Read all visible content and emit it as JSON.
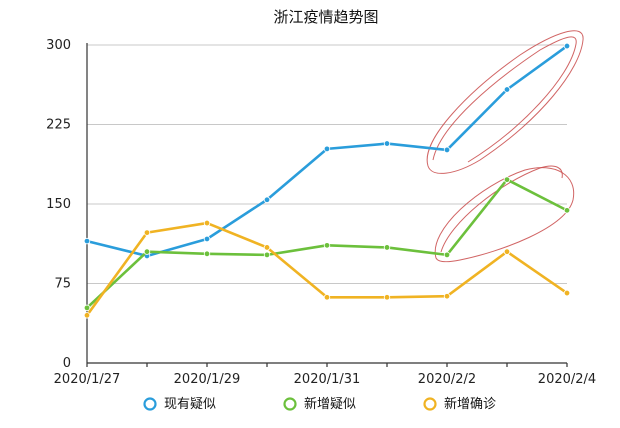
{
  "chart_data": {
    "type": "line",
    "title": "浙江疫情趋势图",
    "x": [
      "2020/1/27",
      "2020/1/28",
      "2020/1/29",
      "2020/1/30",
      "2020/1/31",
      "2020/2/1",
      "2020/2/2",
      "2020/2/3",
      "2020/2/4"
    ],
    "x_tick_labels": [
      "2020/1/27",
      "2020/1/29",
      "2020/1/31",
      "2020/2/2",
      "2020/2/4"
    ],
    "y_tick_labels": [
      "0",
      "75",
      "150",
      "225",
      "300"
    ],
    "ylim": [
      0,
      300
    ],
    "grid": true,
    "legend_position": "bottom",
    "series": [
      {
        "name": "现有疑似",
        "color": "#2a9ddb",
        "values": [
          115,
          101,
          117,
          154,
          202,
          207,
          201,
          258,
          299
        ]
      },
      {
        "name": "新增疑似",
        "color": "#6cc03c",
        "values": [
          52,
          105,
          103,
          102,
          111,
          109,
          102,
          173,
          144
        ]
      },
      {
        "name": "新增确诊",
        "color": "#f0b323",
        "values": [
          45,
          123,
          132,
          109,
          62,
          62,
          63,
          105,
          66
        ]
      }
    ]
  }
}
